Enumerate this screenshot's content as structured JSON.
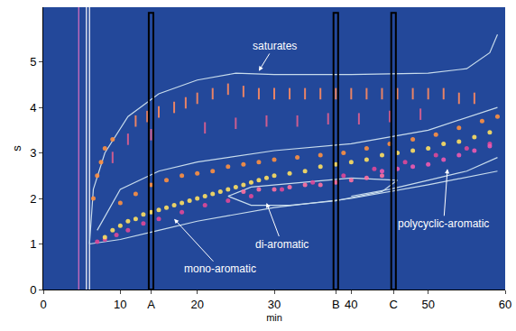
{
  "chart_data": {
    "type": "scatter",
    "x_label": "min",
    "y_label": "s",
    "xlim": [
      0,
      60
    ],
    "ylim": [
      0,
      6.2
    ],
    "xticks": [
      0,
      10,
      {
        "value": 14,
        "label": "A"
      },
      20,
      30,
      {
        "value": 38,
        "label": "B"
      },
      40,
      {
        "value": 45.5,
        "label": "C"
      },
      50,
      60
    ],
    "yticks": [
      0,
      1,
      2,
      3,
      4,
      5
    ],
    "grid": false,
    "sample_cuts": [
      14,
      38,
      45.5
    ],
    "series": [
      {
        "type": "line",
        "line_style": "solid",
        "color": "#e070c0",
        "x": [
          4.6,
          4.6
        ],
        "values": [
          0,
          6.2
        ]
      },
      {
        "type": "line",
        "line_style": "solid",
        "color": "#ffffff",
        "x": [
          5.6,
          5.6
        ],
        "values": [
          0,
          6.2
        ]
      },
      {
        "type": "line",
        "line_style": "solid",
        "color": "#ffffff",
        "x": [
          6.0,
          6.0
        ],
        "values": [
          0,
          6.2
        ]
      },
      {
        "type": "line",
        "line_style": "solid",
        "color": "#c8dcec",
        "x": [
          6,
          6.5,
          8,
          11,
          15,
          20,
          25,
          30,
          40,
          50,
          55,
          58,
          59
        ],
        "values": [
          1.0,
          2.2,
          3.0,
          3.8,
          4.3,
          4.6,
          4.75,
          4.72,
          4.72,
          4.75,
          4.85,
          5.2,
          5.6
        ]
      },
      {
        "type": "line",
        "line_style": "solid",
        "color": "#c8dcec",
        "x": [
          6,
          10,
          15,
          20,
          30,
          40,
          50,
          59
        ],
        "values": [
          1.0,
          1.1,
          1.3,
          1.5,
          1.8,
          2.0,
          2.3,
          2.6
        ]
      },
      {
        "type": "line",
        "line_style": "solid",
        "color": "#c8dcec",
        "x": [
          7,
          10,
          15,
          20,
          30,
          40,
          50,
          57,
          59
        ],
        "values": [
          1.3,
          2.2,
          2.6,
          2.8,
          3.05,
          3.2,
          3.5,
          3.9,
          4.0
        ]
      },
      {
        "type": "line",
        "line_style": "solid",
        "color": "#c8dcec",
        "x": [
          24,
          27,
          32,
          38,
          44,
          46,
          40,
          33,
          27,
          24
        ],
        "values": [
          2.05,
          1.85,
          1.85,
          1.95,
          2.15,
          2.4,
          2.45,
          2.35,
          2.25,
          2.05
        ]
      },
      {
        "type": "line",
        "line_style": "solid",
        "color": "#c8dcec",
        "x": [
          40,
          45,
          50,
          55,
          59
        ],
        "values": [
          2.05,
          2.2,
          2.4,
          2.6,
          2.9
        ]
      },
      {
        "type": "scatter",
        "marker": "circle",
        "color": "#e04898",
        "x": [
          7,
          8,
          9.5,
          11,
          13,
          15,
          18,
          21,
          24,
          27,
          31,
          35,
          39,
          43,
          47,
          51,
          55,
          58
        ],
        "values": [
          1.05,
          1.1,
          1.2,
          1.3,
          1.45,
          1.55,
          1.7,
          1.85,
          1.95,
          2.05,
          2.2,
          2.35,
          2.5,
          2.65,
          2.8,
          2.95,
          3.1,
          3.2
        ]
      },
      {
        "type": "scatter",
        "marker": "circle",
        "color": "#ff9040",
        "x": [
          6.5,
          7,
          7.5,
          8,
          9,
          10,
          12,
          14,
          16,
          18,
          20,
          22,
          24,
          26,
          28,
          30,
          33,
          36,
          39,
          42,
          45,
          48,
          51,
          54,
          57,
          59
        ],
        "values": [
          2.0,
          2.5,
          2.8,
          3.1,
          3.3,
          1.9,
          2.1,
          2.3,
          2.4,
          2.5,
          2.55,
          2.6,
          2.7,
          2.75,
          2.8,
          2.85,
          2.9,
          2.95,
          3.0,
          3.1,
          3.2,
          3.3,
          3.4,
          3.55,
          3.7,
          3.8
        ]
      },
      {
        "type": "scatter",
        "marker": "circle",
        "color": "#ffe060",
        "x": [
          8,
          9,
          10,
          11,
          12,
          13,
          14,
          15,
          16,
          17,
          18,
          19,
          20,
          21,
          22,
          23,
          24,
          25,
          26,
          27,
          28,
          29,
          30,
          32,
          34,
          36,
          38,
          40,
          42,
          44,
          46,
          48,
          50,
          52,
          54,
          56,
          58
        ],
        "values": [
          1.15,
          1.3,
          1.4,
          1.5,
          1.55,
          1.65,
          1.7,
          1.75,
          1.8,
          1.85,
          1.9,
          1.95,
          2.0,
          2.05,
          2.1,
          2.15,
          2.2,
          2.25,
          2.3,
          2.35,
          2.4,
          2.45,
          2.5,
          2.55,
          2.6,
          2.7,
          2.75,
          2.8,
          2.85,
          2.95,
          3.0,
          3.05,
          3.1,
          3.2,
          3.25,
          3.35,
          3.45
        ]
      },
      {
        "type": "scatter",
        "marker": "circle",
        "color": "#ff70a0",
        "x": [
          26,
          28,
          30,
          32,
          34,
          36,
          38,
          40,
          42,
          44
        ],
        "values": [
          2.15,
          2.2,
          2.2,
          2.25,
          2.3,
          2.3,
          2.35,
          2.4,
          2.45,
          2.5
        ]
      },
      {
        "type": "scatter",
        "marker": "circle",
        "color": "#f05ab0",
        "x": [
          44,
          46,
          48,
          50,
          52,
          54,
          56,
          58
        ],
        "values": [
          2.6,
          2.65,
          2.7,
          2.75,
          2.85,
          2.95,
          3.05,
          3.15
        ]
      },
      {
        "type": "scatter",
        "marker": "line-ns",
        "color": "#ff8a60",
        "x": [
          12,
          13.5,
          15,
          17,
          18.5,
          20,
          22,
          24,
          26,
          28,
          30,
          32,
          34,
          36,
          38,
          40,
          42,
          44,
          46,
          48,
          50,
          52,
          54,
          56
        ],
        "values": [
          3.7,
          3.8,
          3.9,
          4.0,
          4.1,
          4.2,
          4.3,
          4.4,
          4.35,
          4.3,
          4.3,
          4.3,
          4.3,
          4.3,
          4.3,
          4.3,
          4.3,
          4.3,
          4.3,
          4.3,
          4.3,
          4.3,
          4.2,
          4.2
        ]
      },
      {
        "type": "scatter",
        "marker": "line-ns",
        "color": "#e06090",
        "x": [
          9,
          11,
          14,
          21,
          25,
          29,
          33,
          37,
          41,
          45,
          49
        ],
        "values": [
          2.9,
          3.3,
          3.4,
          3.55,
          3.65,
          3.7,
          3.7,
          3.75,
          3.75,
          3.8,
          3.85
        ]
      }
    ],
    "annotations": [
      {
        "text": "saturates",
        "x": 30,
        "y": 5.35,
        "arrow_x": 28,
        "arrow_y": 4.8
      },
      {
        "text": "mono-aromatic",
        "x": 23,
        "y": 0.45,
        "arrow_x": 17,
        "arrow_y": 1.55
      },
      {
        "text": "di-aromatic",
        "x": 31,
        "y": 1.0,
        "arrow_x": 29,
        "arrow_y": 1.9
      },
      {
        "text": "polycyclic-aromatic",
        "x": 52,
        "y": 1.45,
        "arrow_x": 52.5,
        "arrow_y": 2.65
      }
    ]
  }
}
